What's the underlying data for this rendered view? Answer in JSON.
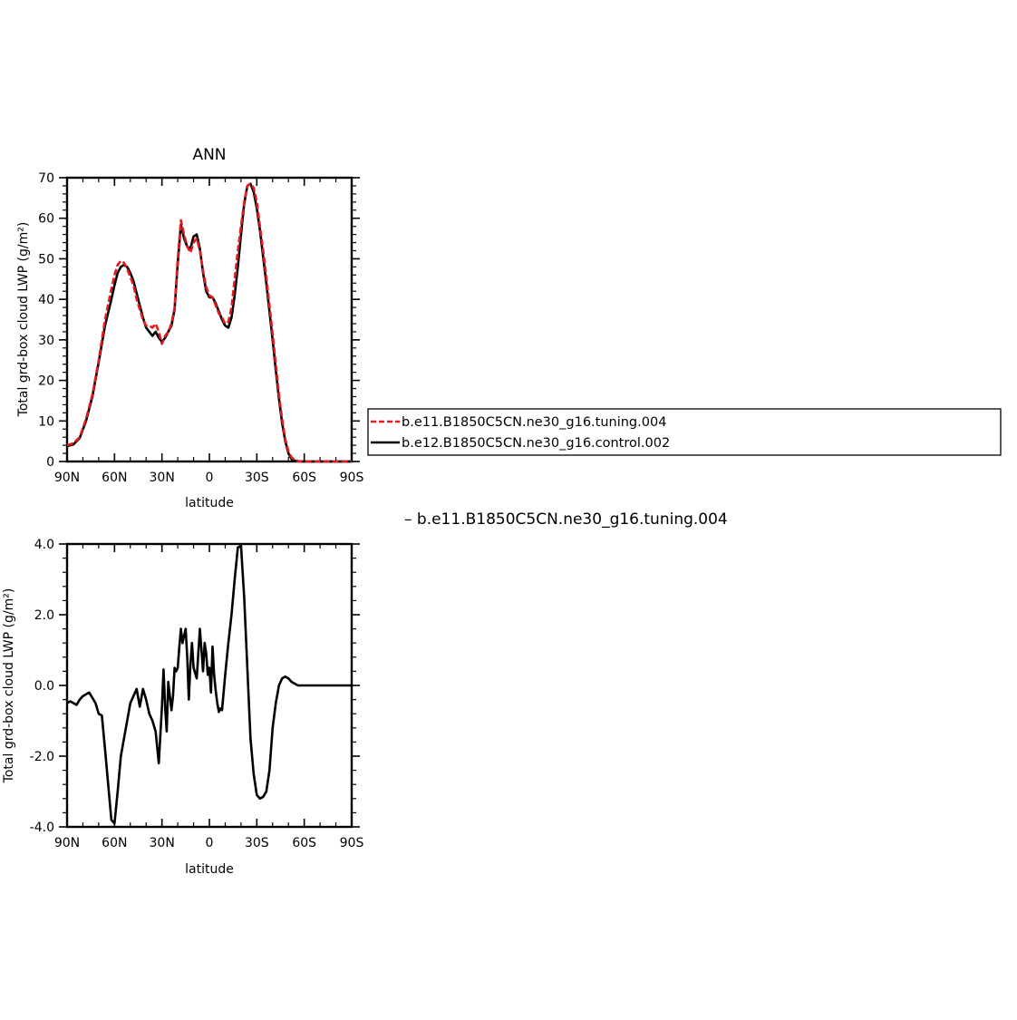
{
  "chart_data": [
    {
      "type": "line",
      "title": "ANN",
      "xlabel": "latitude",
      "ylabel": "Total grd-box cloud LWP (g/m²)",
      "xlim": [
        90,
        -90
      ],
      "ylim": [
        0,
        70
      ],
      "xticks": [
        90,
        60,
        30,
        0,
        -30,
        -60,
        -90
      ],
      "xtick_labels": [
        "90N",
        "60N",
        "30N",
        "0",
        "30S",
        "60S",
        "90S"
      ],
      "yticks": [
        0,
        10,
        20,
        30,
        40,
        50,
        60,
        70
      ],
      "ytick_labels": [
        "0",
        "10",
        "20",
        "30",
        "40",
        "50",
        "60",
        "70"
      ],
      "legend": "outside-right",
      "legend_entries": [
        "b.e11.B1850C5CN.ne30_g16.tuning.004",
        "b.e12.B1850C5CN.ne30_g16.control.002"
      ],
      "series": [
        {
          "name": "b.e11.B1850C5CN.ne30_g16.tuning.004",
          "color": "#e8191e",
          "dash": "dashed",
          "x": [
            90,
            86,
            82,
            78,
            74,
            70,
            66,
            62,
            60,
            58,
            56,
            54,
            52,
            50,
            48,
            46,
            44,
            42,
            40,
            38,
            36,
            34,
            32,
            30,
            28,
            26,
            24,
            22,
            20,
            18,
            16,
            14,
            12,
            10,
            8,
            6,
            4,
            2,
            0,
            -2,
            -4,
            -6,
            -8,
            -10,
            -12,
            -14,
            -16,
            -18,
            -20,
            -22,
            -24,
            -26,
            -28,
            -30,
            -32,
            -34,
            -36,
            -38,
            -40,
            -42,
            -44,
            -46,
            -48,
            -50,
            -52,
            -54,
            -56,
            -58,
            -60,
            -62,
            -64,
            -66,
            -68,
            -70,
            -74,
            -78,
            -82,
            -86,
            -90
          ],
          "y": [
            4.0,
            4.5,
            6.0,
            10.5,
            16.5,
            25.0,
            35.0,
            42.5,
            46.0,
            48.5,
            49.5,
            49.0,
            47.5,
            45.5,
            43.5,
            40.0,
            37.5,
            35.0,
            33.5,
            33.5,
            33.0,
            34.0,
            32.0,
            29.0,
            31.0,
            32.0,
            34.0,
            38.0,
            50.0,
            59.5,
            56.0,
            53.0,
            51.5,
            54.0,
            55.0,
            52.0,
            47.0,
            43.0,
            41.0,
            40.5,
            38.5,
            36.5,
            35.5,
            34.0,
            34.5,
            38.0,
            45.0,
            52.0,
            58.0,
            64.0,
            68.0,
            68.5,
            67.5,
            64.0,
            58.0,
            52.0,
            45.5,
            38.5,
            31.5,
            24.0,
            16.5,
            10.5,
            5.5,
            2.5,
            1.0,
            0.3,
            0.1,
            0,
            0,
            0,
            0,
            0,
            0,
            0,
            0,
            0,
            0,
            0,
            0
          ]
        },
        {
          "name": "b.e12.B1850C5CN.ne30_g16.control.002",
          "color": "#000000",
          "dash": "solid",
          "x": [
            90,
            86,
            82,
            78,
            74,
            70,
            66,
            62,
            60,
            58,
            56,
            54,
            52,
            50,
            48,
            46,
            44,
            42,
            40,
            38,
            36,
            34,
            32,
            30,
            28,
            26,
            24,
            22,
            20,
            18,
            16,
            14,
            12,
            10,
            8,
            6,
            4,
            2,
            0,
            -2,
            -4,
            -6,
            -8,
            -10,
            -12,
            -14,
            -16,
            -18,
            -20,
            -22,
            -24,
            -26,
            -28,
            -30,
            -32,
            -34,
            -36,
            -38,
            -40,
            -42,
            -44,
            -46,
            -48,
            -50,
            -52,
            -54,
            -56,
            -58,
            -60,
            -62,
            -64,
            -66,
            -68,
            -70,
            -74,
            -78,
            -82,
            -86,
            -90
          ],
          "y": [
            3.8,
            4.2,
            5.8,
            10.0,
            16.0,
            24.5,
            33.5,
            40.0,
            43.5,
            46.5,
            48.0,
            48.5,
            48.0,
            46.5,
            44.5,
            41.5,
            38.5,
            35.5,
            33.0,
            32.0,
            31.0,
            32.0,
            30.5,
            29.5,
            30.5,
            32.0,
            33.5,
            37.5,
            49.0,
            58.5,
            55.0,
            53.0,
            52.5,
            55.5,
            56.0,
            52.5,
            46.5,
            42.0,
            40.5,
            40.5,
            39.0,
            37.0,
            35.0,
            33.5,
            33.0,
            35.5,
            41.0,
            48.0,
            56.0,
            63.5,
            68.0,
            68.5,
            66.5,
            62.5,
            57.0,
            50.5,
            44.0,
            37.0,
            30.0,
            22.5,
            15.5,
            9.5,
            5.0,
            2.0,
            0.6,
            0.2,
            0.1,
            0,
            0,
            0,
            0,
            0,
            0,
            0,
            0,
            0,
            0,
            0,
            0
          ]
        }
      ]
    },
    {
      "type": "line",
      "title": "",
      "title_right": "b.e11.B1850C5CN.ne30_g16.tuning.004",
      "xlabel": "latitude",
      "ylabel": "Total grd-box cloud LWP (g/m²)",
      "xlim": [
        90,
        -90
      ],
      "ylim": [
        -4.0,
        4.0
      ],
      "xticks": [
        90,
        60,
        30,
        0,
        -30,
        -60,
        -90
      ],
      "xtick_labels": [
        "90N",
        "60N",
        "30N",
        "0",
        "30S",
        "60S",
        "90S"
      ],
      "yticks": [
        -4.0,
        -2.0,
        0.0,
        2.0,
        4.0
      ],
      "ytick_labels": [
        "-4.0",
        "-2.0",
        "0.0",
        "2.0",
        "4.0"
      ],
      "series": [
        {
          "color": "#000000",
          "dash": "solid",
          "x": [
            90,
            88,
            86,
            84,
            82,
            80,
            78,
            76,
            74,
            72,
            70,
            68,
            66,
            64,
            62,
            60,
            58,
            56,
            54,
            52,
            50,
            48,
            46,
            44,
            42,
            40,
            38,
            36,
            34,
            32,
            30,
            29,
            28,
            27,
            26,
            24,
            23,
            22,
            21,
            20,
            19,
            18,
            17,
            16,
            15,
            14,
            13,
            12,
            11,
            10,
            8,
            6,
            5,
            4,
            3,
            2,
            1,
            0,
            -1,
            -2,
            -3,
            -4,
            -5,
            -6,
            -7,
            -8,
            -10,
            -12,
            -14,
            -16,
            -18,
            -20,
            -22,
            -24,
            -26,
            -28,
            -30,
            -32,
            -34,
            -36,
            -38,
            -40,
            -42,
            -44,
            -46,
            -48,
            -50,
            -52,
            -54,
            -56,
            -58,
            -60,
            -62,
            -64,
            -66,
            -68,
            -70,
            -72,
            -74,
            -76,
            -78,
            -80,
            -82,
            -84,
            -86,
            -88,
            -90
          ],
          "y": [
            -0.5,
            -0.45,
            -0.5,
            -0.55,
            -0.4,
            -0.3,
            -0.25,
            -0.2,
            -0.35,
            -0.5,
            -0.8,
            -0.85,
            -1.8,
            -2.8,
            -3.8,
            -3.9,
            -3.0,
            -2.0,
            -1.5,
            -1.0,
            -0.5,
            -0.3,
            -0.1,
            -0.6,
            -0.1,
            -0.4,
            -0.8,
            -1.0,
            -1.3,
            -2.2,
            -0.6,
            0.45,
            -0.6,
            -1.3,
            0.1,
            -0.7,
            -0.3,
            0.5,
            0.4,
            0.5,
            1.1,
            1.6,
            1.2,
            1.4,
            1.6,
            0.8,
            -0.4,
            0.6,
            1.2,
            0.5,
            0.2,
            1.6,
            1.0,
            0.4,
            1.2,
            0.9,
            0.3,
            0.5,
            -0.2,
            1.1,
            0.3,
            -0.15,
            -0.5,
            -0.75,
            -0.65,
            -0.7,
            0.3,
            1.2,
            2.0,
            3.0,
            3.9,
            3.95,
            2.5,
            0.5,
            -1.5,
            -2.5,
            -3.1,
            -3.2,
            -3.15,
            -3.0,
            -2.4,
            -1.2,
            -0.5,
            0.0,
            0.2,
            0.25,
            0.2,
            0.1,
            0.05,
            0.0,
            0.0,
            0.0,
            0.0,
            0.0,
            0.0,
            0.0,
            0.0,
            0.0,
            0.0,
            0.0,
            0.0,
            0.0,
            0.0,
            0.0,
            0.0,
            0.0,
            0.0
          ]
        }
      ]
    }
  ]
}
